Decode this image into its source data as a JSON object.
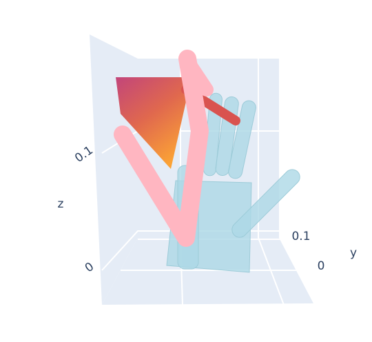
{
  "chart_data": {
    "type": "scatter3d",
    "zlabel": "z",
    "ylabel": "y",
    "zticks": [
      0,
      0.1
    ],
    "yticks": [
      0,
      0.1
    ],
    "grid": true
  }
}
